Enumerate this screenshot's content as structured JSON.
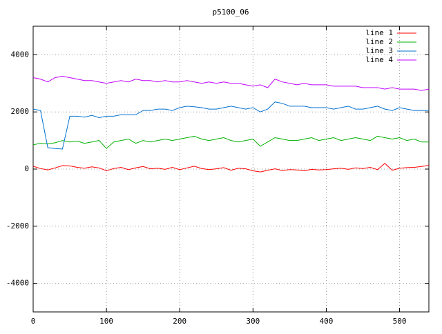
{
  "chart_data": {
    "type": "line",
    "title": "p5100_06",
    "x": [
      0,
      10,
      20,
      30,
      40,
      50,
      60,
      70,
      80,
      90,
      100,
      110,
      120,
      130,
      140,
      150,
      160,
      170,
      180,
      190,
      200,
      210,
      220,
      230,
      240,
      250,
      260,
      270,
      280,
      290,
      300,
      310,
      320,
      330,
      340,
      350,
      360,
      370,
      380,
      390,
      400,
      410,
      420,
      430,
      440,
      450,
      460,
      470,
      480,
      490,
      500,
      510,
      520,
      530,
      540
    ],
    "series": [
      {
        "name": "line 1",
        "color": "#ff0000",
        "values": [
          100,
          20,
          -30,
          40,
          120,
          110,
          60,
          30,
          80,
          40,
          -60,
          20,
          60,
          -20,
          40,
          90,
          10,
          30,
          -10,
          60,
          -20,
          40,
          100,
          20,
          -20,
          10,
          50,
          -40,
          30,
          10,
          -60,
          -100,
          -40,
          10,
          -50,
          -20,
          -30,
          -60,
          -10,
          -30,
          -20,
          10,
          30,
          -10,
          40,
          20,
          60,
          -20,
          200,
          -40,
          30,
          50,
          60,
          90,
          130
        ]
      },
      {
        "name": "line 2",
        "color": "#00b000",
        "values": [
          850,
          900,
          880,
          920,
          1000,
          950,
          980,
          900,
          950,
          1000,
          720,
          950,
          1000,
          1050,
          900,
          1000,
          950,
          1000,
          1050,
          1000,
          1050,
          1100,
          1150,
          1050,
          1000,
          1050,
          1100,
          1000,
          950,
          1000,
          1050,
          800,
          950,
          1100,
          1050,
          1000,
          1000,
          1050,
          1100,
          1000,
          1050,
          1100,
          1000,
          1050,
          1100,
          1050,
          1000,
          1150,
          1100,
          1050,
          1100,
          1000,
          1050,
          950,
          950
        ]
      },
      {
        "name": "line 3",
        "color": "#0070d0",
        "values": [
          2100,
          2050,
          750,
          720,
          700,
          1850,
          1850,
          1820,
          1880,
          1800,
          1850,
          1850,
          1900,
          1900,
          1900,
          2050,
          2050,
          2100,
          2100,
          2050,
          2150,
          2200,
          2180,
          2150,
          2100,
          2100,
          2150,
          2200,
          2150,
          2100,
          2150,
          2000,
          2100,
          2350,
          2300,
          2200,
          2200,
          2200,
          2150,
          2150,
          2150,
          2100,
          2150,
          2200,
          2100,
          2100,
          2150,
          2200,
          2100,
          2050,
          2150,
          2100,
          2050,
          2050,
          2050
        ]
      },
      {
        "name": "line 4",
        "color": "#c000ff",
        "values": [
          3200,
          3150,
          3050,
          3200,
          3250,
          3200,
          3150,
          3100,
          3100,
          3050,
          3000,
          3050,
          3100,
          3050,
          3150,
          3100,
          3100,
          3050,
          3100,
          3050,
          3050,
          3100,
          3050,
          3000,
          3050,
          3000,
          3050,
          3000,
          3000,
          2950,
          2900,
          2950,
          2850,
          3150,
          3050,
          3000,
          2950,
          3000,
          2950,
          2950,
          2950,
          2900,
          2900,
          2900,
          2900,
          2850,
          2850,
          2850,
          2800,
          2850,
          2800,
          2800,
          2800,
          2750,
          2800
        ]
      }
    ],
    "xlim": [
      0,
      540
    ],
    "xticks": [
      0,
      100,
      200,
      300,
      400,
      500
    ],
    "ylim": [
      -5000,
      5000
    ],
    "yticks": [
      -4000,
      -2000,
      0,
      2000,
      4000
    ],
    "grid": true,
    "legend": "top-right"
  }
}
